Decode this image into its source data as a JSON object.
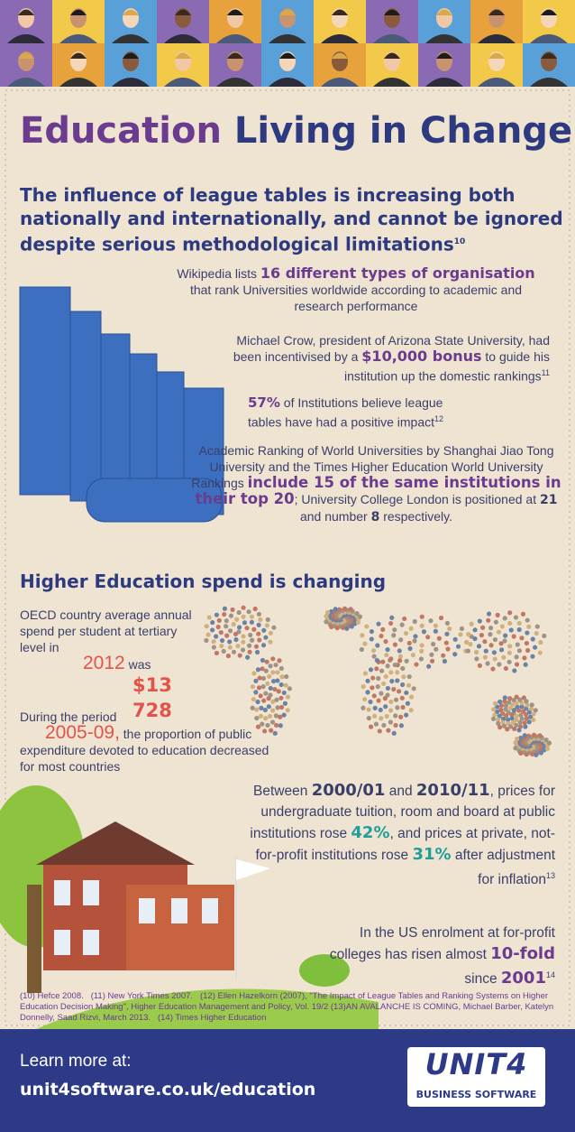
{
  "header": {
    "title_part1": "Education",
    "title_part2": "Living in Change",
    "subtitle": "The influence of league tables is increasing both nationally and internationally, and cannot be ignored despite serious methodological limitations",
    "subtitle_ref": "10"
  },
  "facts": [
    {
      "segments": [
        "Wikipedia lists ",
        "16 different types of organisation",
        " that rank Universities worldwide according to academic and research performance"
      ]
    },
    {
      "segments": [
        "Michael Crow, president of Arizona State University, had been incentivised by a ",
        "$10,000 bonus",
        " to guide his institution up the domestic rankings",
        "11"
      ]
    },
    {
      "segments": [
        "57%",
        " of Institutions believe league tables have had a positive impact",
        "12"
      ]
    },
    {
      "segments": [
        "Academic Ranking of World Universities by Shanghai Jiao Tong University and the Times Higher Education World University Rankings ",
        "include 15 of the same institutions in their top 20",
        "; University College London is positioned at ",
        "21",
        " and number ",
        "8",
        " respectively."
      ]
    }
  ],
  "spend": {
    "heading": "Higher Education spend is changing",
    "oecd": [
      "OECD country average annual spend per student at tertiary level in",
      "2012",
      "was",
      "$13 728"
    ],
    "period": [
      "During the period",
      "2005-09,",
      "the proportion of public expenditure devoted to education decreased for most countries"
    ],
    "tuition": [
      "Between ",
      "2000/01",
      " and ",
      "2010/11",
      ", prices for undergraduate tuition, room and board at public institutions rose ",
      "42%",
      ", and prices at private, not-for-profit institutions rose ",
      "31%",
      " after adjustment for inflation",
      "13"
    ],
    "enrolment": [
      "In the US enrolment at for-profit colleges has risen almost ",
      "10-fold",
      " since ",
      "2001",
      "14"
    ]
  },
  "footnotes": [
    "(10) Hefce 2008.",
    "(11) New York Times 2007.",
    "(12) Ellen Hazelkorn (2007), \"The Impact of League Tables and Ranking Systems on Higher Education Decision Making\", Higher Education Management and Policy, Vol. 19/2",
    "(13)AN AVALANCHE IS COMING, Michael Barber, Katelyn Donnelly, Saad Rizvi, March 2013.",
    "(14) Times Higher Education"
  ],
  "footer": {
    "learn": "Learn more at:",
    "url": "unit4software.co.uk/education",
    "logo": "UNIT4",
    "logo_sub": "BUSINESS SOFTWARE"
  }
}
